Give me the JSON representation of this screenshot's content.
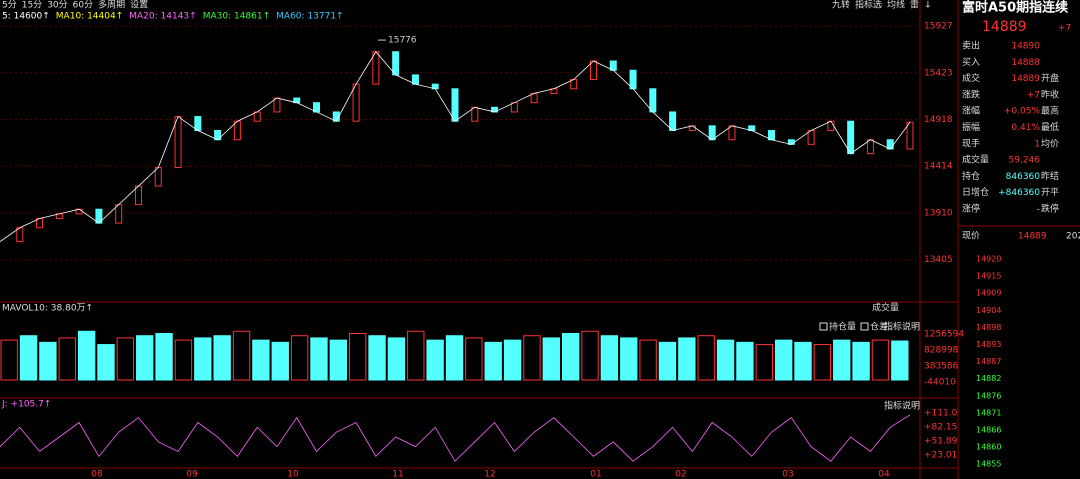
{
  "toolbar": {
    "left": [
      "5分",
      "15分",
      "30分",
      "60分",
      "多周期",
      "设置"
    ],
    "right": [
      "九转",
      "指标选",
      "均线",
      "雷",
      "↓"
    ]
  },
  "ma_line": [
    {
      "text": "5: 14600↑",
      "color": "#ffffff"
    },
    {
      "text": "MA10: 14404↑",
      "color": "#ffff00"
    },
    {
      "text": "MA20: 14143↑",
      "color": "#ff66ff"
    },
    {
      "text": "MA30: 14861↑",
      "color": "#33ff33"
    },
    {
      "text": "MA60: 13771↑",
      "color": "#33ccff"
    }
  ],
  "price_chart": {
    "ylim": [
      12970,
      15971
    ],
    "yticks": [
      15927,
      15423,
      14918,
      14414,
      13910,
      13405
    ],
    "high_label": "15776",
    "high_value": 15776,
    "closes": [
      13600,
      13750,
      13850,
      13900,
      13950,
      13800,
      14000,
      14200,
      14400,
      14950,
      14800,
      14700,
      14900,
      15000,
      15150,
      15100,
      15000,
      14900,
      15300,
      15650,
      15400,
      15300,
      15250,
      14900,
      15050,
      15000,
      15100,
      15200,
      15250,
      15350,
      15550,
      15450,
      15250,
      15000,
      14800,
      14850,
      14700,
      14850,
      14800,
      14700,
      14650,
      14800,
      14900,
      14550,
      14700,
      14600,
      14889
    ]
  },
  "volume_panel": {
    "title": "MAVOL10: 38.80万↑",
    "tab": "成交量",
    "checks": [
      "持仓量",
      "仓差"
    ],
    "help": "指标说明",
    "axis": [
      "1256594",
      "828998",
      "383586",
      "-44010"
    ],
    "ylim": [
      0,
      1400000
    ],
    "values": [
      900000,
      1000000,
      850000,
      950000,
      1100000,
      800000,
      950000,
      1000000,
      1050000,
      900000,
      950000,
      1000000,
      1100000,
      900000,
      850000,
      1000000,
      950000,
      900000,
      1050000,
      1000000,
      950000,
      1100000,
      900000,
      1000000,
      950000,
      850000,
      900000,
      1000000,
      950000,
      1050000,
      1100000,
      1000000,
      950000,
      900000,
      850000,
      950000,
      1000000,
      900000,
      850000,
      800000,
      900000,
      850000,
      800000,
      900000,
      850000,
      900000,
      880000
    ]
  },
  "kdj_panel": {
    "title": "J: +105.7↑",
    "help": "指标说明",
    "axis": [
      "+111.0",
      "+82.15",
      "+51.89",
      "+23.01"
    ],
    "ylim": [
      0,
      120
    ],
    "j": [
      40,
      80,
      30,
      60,
      90,
      20,
      70,
      100,
      50,
      30,
      90,
      60,
      20,
      80,
      40,
      100,
      30,
      70,
      90,
      20,
      60,
      40,
      80,
      10,
      50,
      90,
      30,
      70,
      100,
      60,
      20,
      50,
      10,
      40,
      80,
      30,
      90,
      60,
      20,
      70,
      100,
      40,
      10,
      60,
      30,
      80,
      105.7
    ]
  },
  "months": [
    "08",
    "09",
    "10",
    "11",
    "12",
    "01",
    "02",
    "03",
    "04"
  ],
  "quote": {
    "title": "富时A50期指连续",
    "price": "14889",
    "change": "+7",
    "rows": [
      [
        "卖出",
        "14890",
        ""
      ],
      [
        "买入",
        "14888",
        ""
      ],
      [
        "成交",
        "14889",
        "开盘"
      ],
      [
        "涨跌",
        "+7",
        "昨收"
      ],
      [
        "涨幅",
        "+0.05%",
        "最高"
      ],
      [
        "振幅",
        "0.41%",
        "最低"
      ],
      [
        "现手",
        "1",
        "均价"
      ],
      [
        "成交量",
        "59,246",
        ""
      ],
      [
        "持仓",
        "846360",
        "昨结"
      ],
      [
        "日增仓",
        "+846360",
        "开平"
      ],
      [
        "涨停",
        "-",
        "跌停"
      ]
    ],
    "tick_header": [
      "现价",
      "14889",
      "202"
    ],
    "tick_axis": [
      "14920",
      "14915",
      "14909",
      "14904",
      "14898",
      "14893",
      "14887",
      "14882",
      "14876",
      "14871",
      "14866",
      "14860",
      "14855"
    ]
  }
}
